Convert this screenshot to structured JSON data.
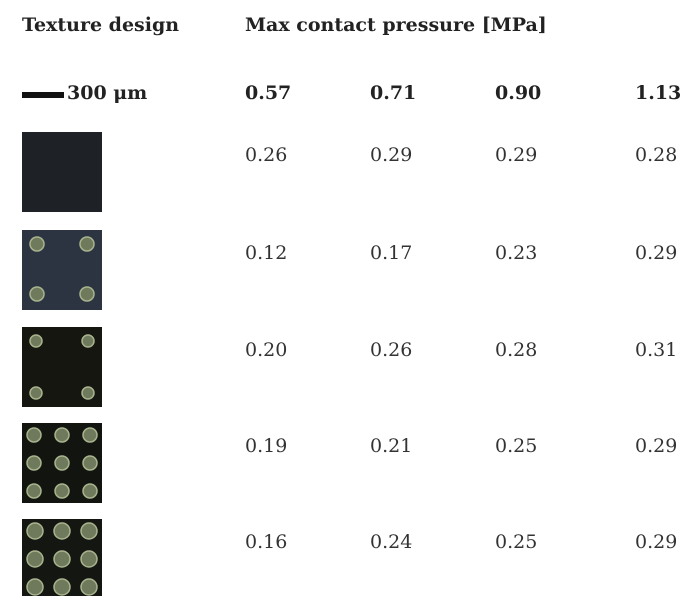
{
  "header": {
    "title": "Texture design",
    "group": "Max contact pressure [MPa]"
  },
  "scale_bar": "300 μm",
  "table": {
    "columns": [
      "0.57",
      "0.71",
      "0.90",
      "1.13"
    ],
    "rows": [
      [
        "0.26",
        "0.29",
        "0.29",
        "0.28"
      ],
      [
        "0.12",
        "0.17",
        "0.23",
        "0.29"
      ],
      [
        "0.20",
        "0.26",
        "0.28",
        "0.31"
      ],
      [
        "0.19",
        "0.21",
        "0.25",
        "0.29"
      ],
      [
        "0.16",
        "0.24",
        "0.25",
        "0.29"
      ]
    ]
  }
}
